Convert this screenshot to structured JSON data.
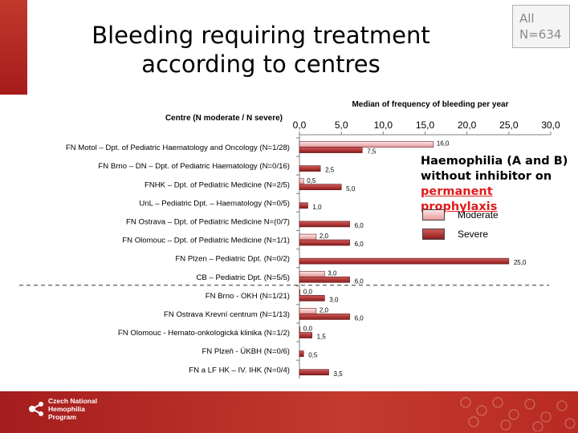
{
  "header": {
    "title_line1": "Bleeding requiring treatment",
    "title_line2": "according to centres",
    "badge_line1": "All",
    "badge_line2": "N=634"
  },
  "legend": {
    "title_line1": "Haemophilia (A and B)",
    "title_line2": "without inhibitor on",
    "title_highlight_line1": "permanent",
    "title_highlight_line2": "prophylaxis",
    "moderate": "Moderate",
    "severe": "Severe"
  },
  "footer": {
    "org_line1": "Czech National",
    "org_line2": "Hemophilia",
    "org_line3": "Program"
  },
  "colors": {
    "moderate_fill": "#eba6a6",
    "severe_fill": "#a52a2a",
    "footer_bg": "#b52525"
  },
  "chart_data": {
    "type": "bar",
    "orientation": "horizontal",
    "title": "Median of frequency of bleeding per year",
    "category_axis_label": "Centre (N moderate / N severe)",
    "xlim": [
      0,
      30
    ],
    "ticks": [
      "0,0",
      "5,0",
      "10,0",
      "15,0",
      "20,0",
      "25,0",
      "30,0"
    ],
    "tick_values": [
      0,
      5,
      10,
      15,
      20,
      25,
      30
    ],
    "grid": false,
    "separator_after_index": 7,
    "categories": [
      "FN Motol – Dpt. of Pediatric Haematology and Oncology (N=1/28)",
      "FN Brno – DN – Dpt. of Pediatric Haematology  (N=0/16)",
      "FNHK – Dpt. of Pediatric Medicine (N=2/5)",
      "UnL – Pediatric Dpt. – Haematology (N=0/5)",
      "FN Ostrava – Dpt. of Pediatric Medicine N=(0/7)",
      "FN Olomouc – Dpt. of Pediatric Medicine (N=1/1)",
      "FN Plzen – Pediatric Dpt. (N=0/2)",
      "CB – Pediatric Dpt. (N=5/5)",
      "FN Brno - OKH (N=1/21)",
      "FN Ostrava Krevní centrum (N=1/13)",
      "FN Olomouc - Hemato-onkologická klinika (N=1/2)",
      "FN Plzeň - ÚKBH (N=0/6)",
      "FN a LF HK – IV. IHK (N=0/4)"
    ],
    "series": [
      {
        "name": "Moderate",
        "values": [
          16.0,
          null,
          0.5,
          null,
          null,
          2.0,
          null,
          3.0,
          0.0,
          2.0,
          0.0,
          null,
          null
        ],
        "labels": [
          "16,0",
          "",
          "0,5",
          "",
          "",
          "2,0",
          "",
          "3,0",
          "0,0",
          "2,0",
          "0,0",
          "",
          ""
        ]
      },
      {
        "name": "Severe",
        "values": [
          7.5,
          2.5,
          5.0,
          1.0,
          6.0,
          6.0,
          25.0,
          6.0,
          3.0,
          6.0,
          1.5,
          0.5,
          3.5
        ],
        "labels": [
          "7,5",
          "2,5",
          "5,0",
          "1,0",
          "6,0",
          "6,0",
          "25,0",
          "6,0",
          "3,0",
          "6,0",
          "1,5",
          "0,5",
          "3,5"
        ]
      }
    ]
  }
}
